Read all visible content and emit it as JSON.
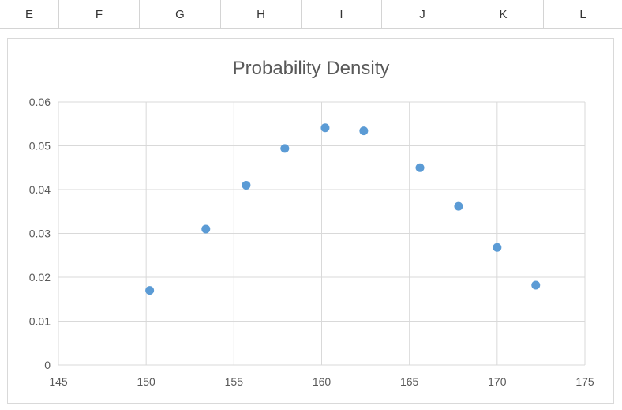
{
  "spreadsheet": {
    "column_headers": [
      "E",
      "F",
      "G",
      "H",
      "I",
      "J",
      "K",
      "L"
    ]
  },
  "colors": {
    "marker": "#5b9bd5",
    "grid": "#d9d9d9",
    "text": "#595959"
  },
  "chart_data": {
    "type": "scatter",
    "title": "Probability Density",
    "xlabel": "",
    "ylabel": "",
    "xlim": [
      145,
      175
    ],
    "ylim": [
      0,
      0.06
    ],
    "x_ticks": [
      145,
      150,
      155,
      160,
      165,
      170,
      175
    ],
    "y_ticks": [
      0,
      0.01,
      0.02,
      0.03,
      0.04,
      0.05,
      0.06
    ],
    "x_tick_labels": [
      "145",
      "150",
      "155",
      "160",
      "165",
      "170",
      "175"
    ],
    "y_tick_labels": [
      "0",
      "0.01",
      "0.02",
      "0.03",
      "0.04",
      "0.05",
      "0.06"
    ],
    "grid": true,
    "legend": "none",
    "points": [
      {
        "x": 150.2,
        "y": 0.017
      },
      {
        "x": 153.4,
        "y": 0.031
      },
      {
        "x": 155.7,
        "y": 0.041
      },
      {
        "x": 157.9,
        "y": 0.0494
      },
      {
        "x": 160.2,
        "y": 0.0541
      },
      {
        "x": 162.4,
        "y": 0.0534
      },
      {
        "x": 165.6,
        "y": 0.045
      },
      {
        "x": 167.8,
        "y": 0.0362
      },
      {
        "x": 170.0,
        "y": 0.0268
      },
      {
        "x": 172.2,
        "y": 0.0182
      }
    ]
  }
}
